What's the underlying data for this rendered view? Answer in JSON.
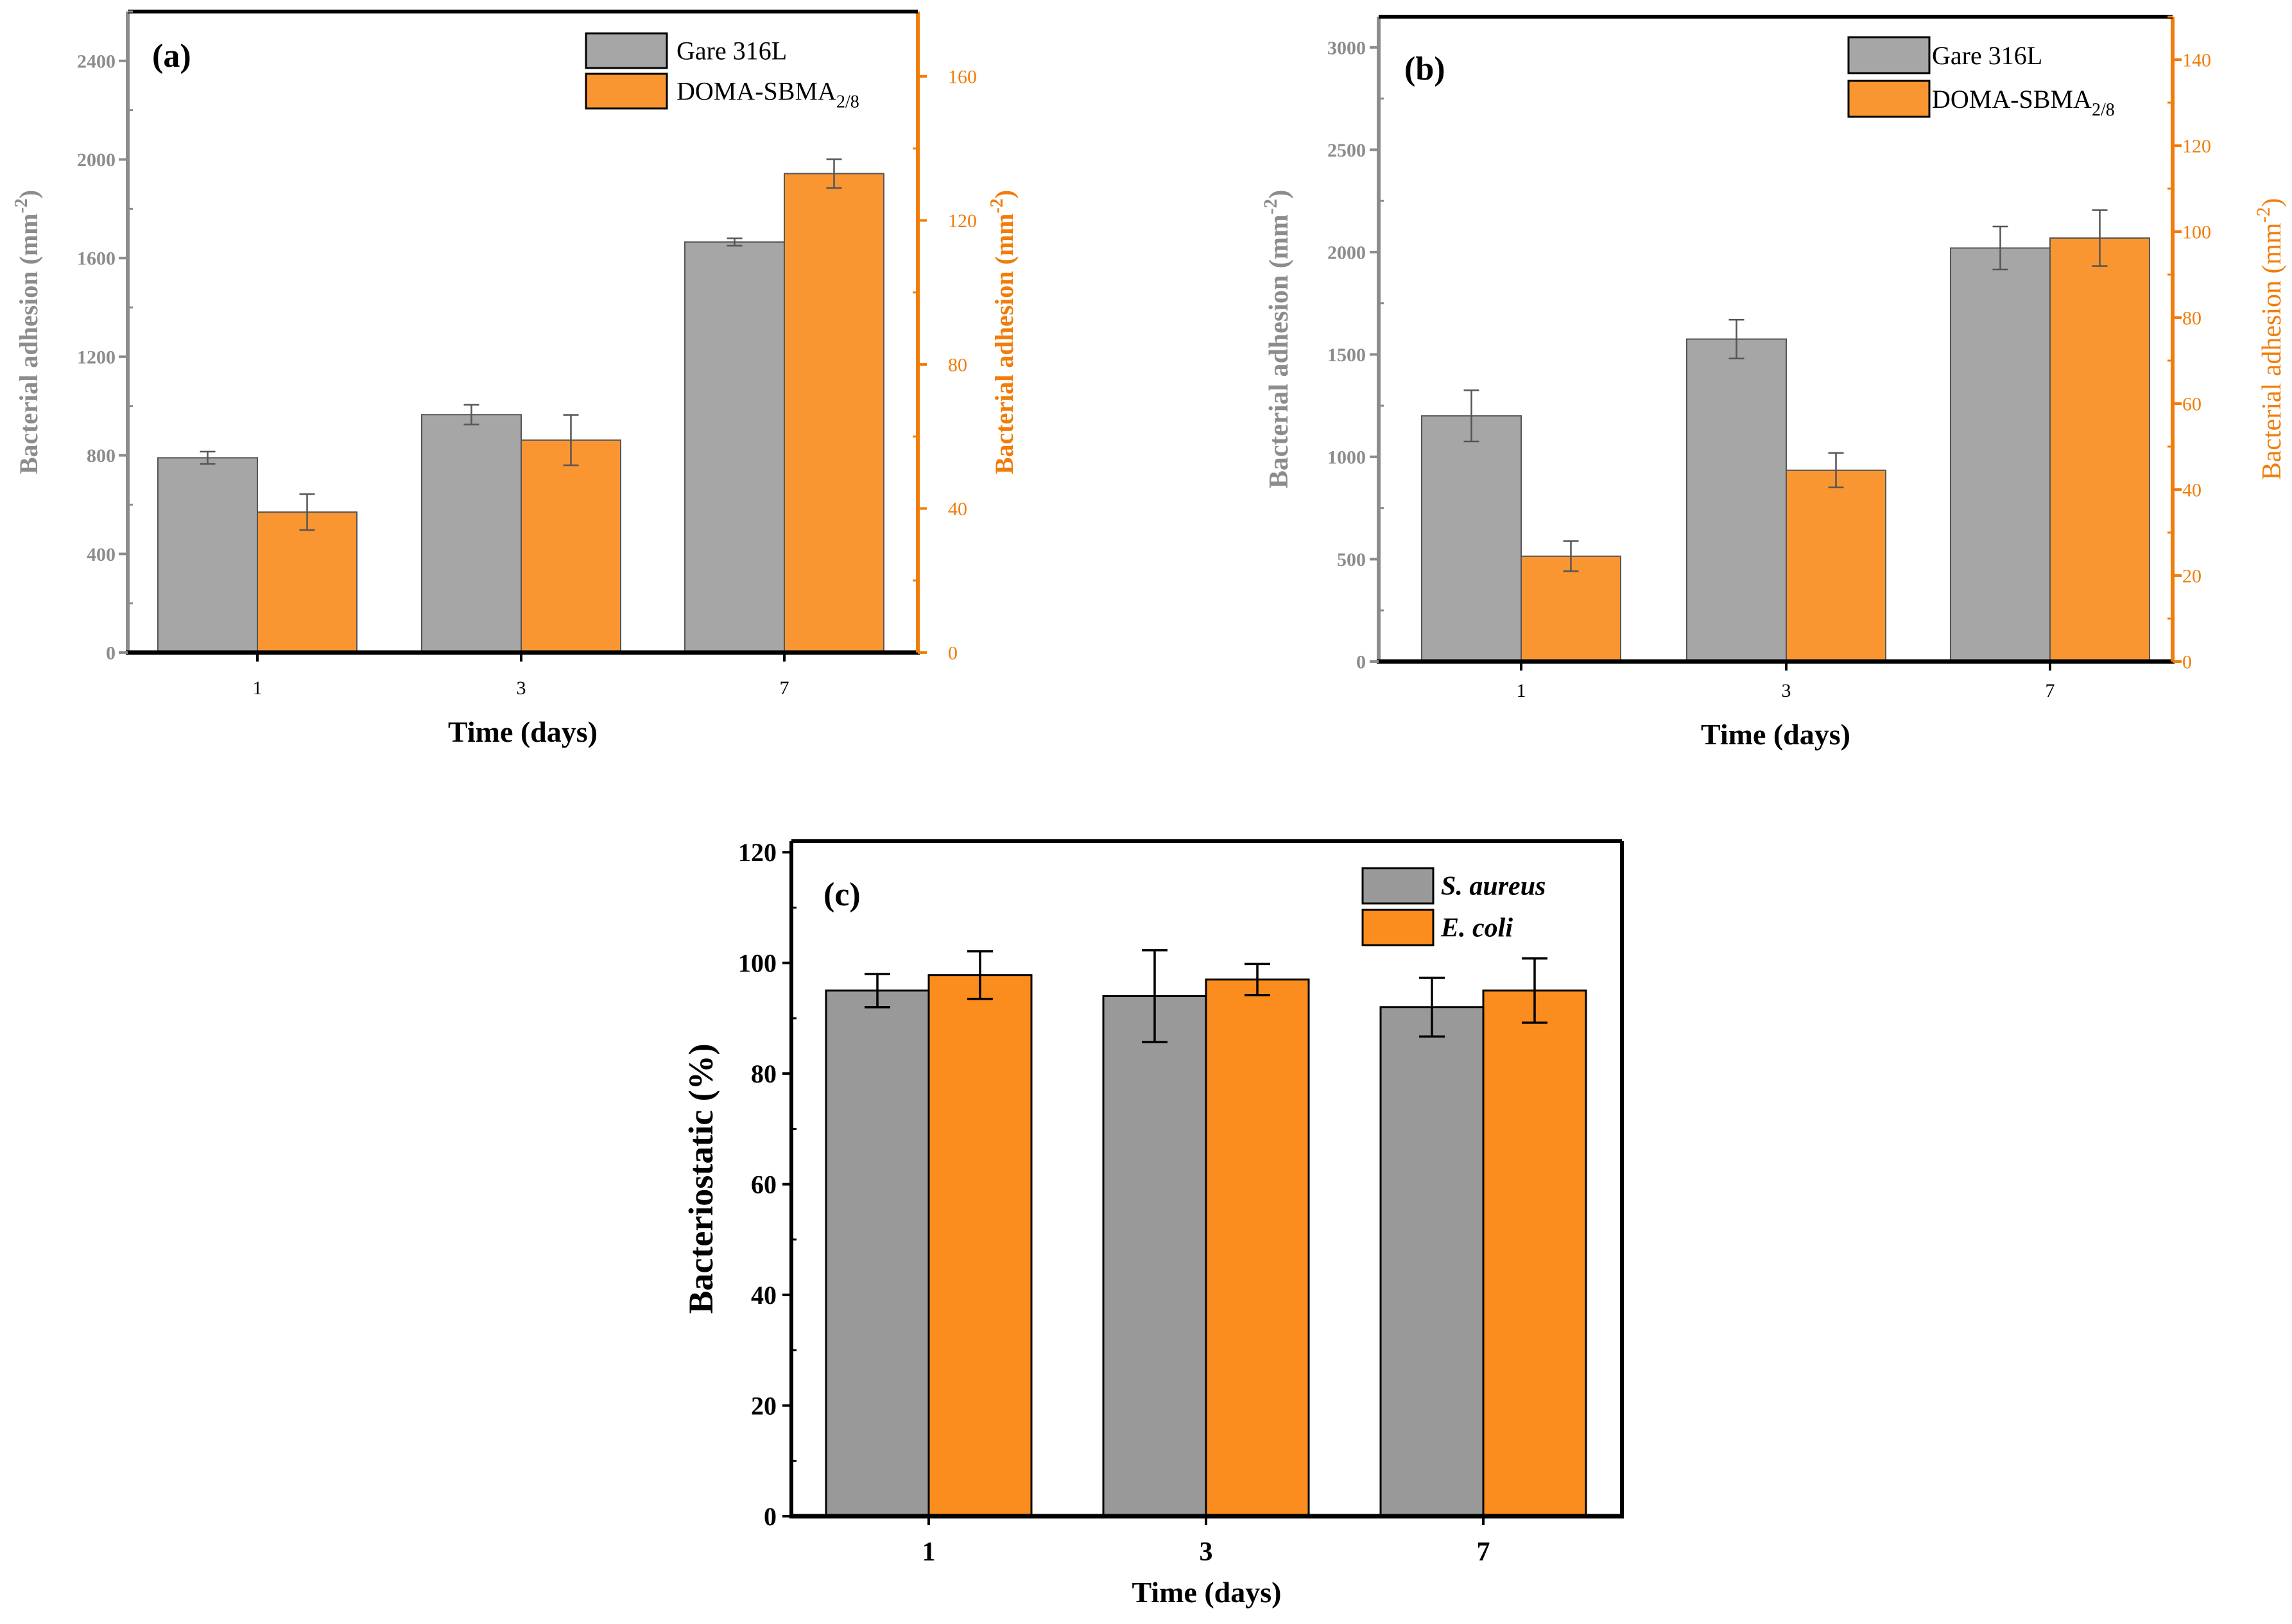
{
  "colors": {
    "gray": "#a6a6a6",
    "gray_dark": "#999999",
    "orange": "#fa9632",
    "orange_c": "#fb8c1e",
    "axis_gray": "#8c8c8c",
    "axis_orange": "#f07d0a",
    "black": "#000000"
  },
  "chart_data": [
    {
      "id": "a",
      "type": "bar",
      "panel_label": "(a)",
      "title": "",
      "categories": [
        "1",
        "3",
        "7"
      ],
      "xlabel": "Time (days)",
      "ylabel_left": "Bacterial adhesion (mm",
      "ylabel_right": "Bacterial adhesion (mm",
      "ylabel_sup": "-2",
      "ylabel_close": ")",
      "ylim_left": [
        0,
        2600
      ],
      "ylim_right": [
        0,
        178
      ],
      "yticks_left": [
        0,
        400,
        800,
        1200,
        1600,
        2000,
        2400
      ],
      "yticks_right": [
        0,
        40,
        80,
        120,
        160
      ],
      "grid": false,
      "legend_position": "top-right",
      "series": [
        {
          "name": "Gare 316L",
          "name_sub": "",
          "axis": "left",
          "values": [
            790,
            965,
            1665
          ],
          "errors": [
            25,
            40,
            15
          ]
        },
        {
          "name": "DOMA-SBMA",
          "name_sub": "2/8",
          "axis": "right",
          "values": [
            39,
            59,
            133
          ],
          "errors": [
            5,
            7,
            4
          ]
        }
      ]
    },
    {
      "id": "b",
      "type": "bar",
      "panel_label": "(b)",
      "title": "",
      "categories": [
        "1",
        "3",
        "7"
      ],
      "xlabel": "Time (days)",
      "ylabel_left": "Bacterial adhesion (mm",
      "ylabel_right": "Bacterial adhesion (mm",
      "ylabel_sup": "-2",
      "ylabel_close": ")",
      "ylim_left": [
        0,
        3150
      ],
      "ylim_right": [
        0,
        150
      ],
      "yticks_left": [
        0,
        500,
        1000,
        1500,
        2000,
        2500,
        3000
      ],
      "yticks_right": [
        0,
        20,
        40,
        60,
        80,
        100,
        120,
        140
      ],
      "grid": false,
      "legend_position": "top-right",
      "series": [
        {
          "name": "Gare 316L",
          "name_sub": "",
          "axis": "left",
          "values": [
            1200,
            1575,
            2020
          ],
          "errors": [
            125,
            95,
            105
          ]
        },
        {
          "name": "DOMA-SBMA",
          "name_sub": "2/8",
          "axis": "right",
          "values": [
            24.5,
            44.5,
            98.5
          ],
          "errors": [
            3.5,
            4,
            6.5
          ]
        }
      ]
    },
    {
      "id": "c",
      "type": "bar",
      "panel_label": "(c)",
      "title": "",
      "categories": [
        "1",
        "3",
        "7"
      ],
      "xlabel": "Time (days)",
      "ylabel_left": "Bacteriostatic (%)",
      "ylim_left": [
        0,
        122
      ],
      "yticks_left": [
        0,
        20,
        40,
        60,
        80,
        100,
        120
      ],
      "grid": false,
      "legend_position": "top-right",
      "series": [
        {
          "name": "S. aureus",
          "name_sub": "",
          "values": [
            95,
            94,
            92
          ],
          "errors": [
            3,
            8.3,
            5.3
          ]
        },
        {
          "name": "E. coli",
          "name_sub": "",
          "values": [
            97.8,
            97,
            95
          ],
          "errors": [
            4.3,
            2.8,
            5.8
          ]
        }
      ]
    }
  ]
}
